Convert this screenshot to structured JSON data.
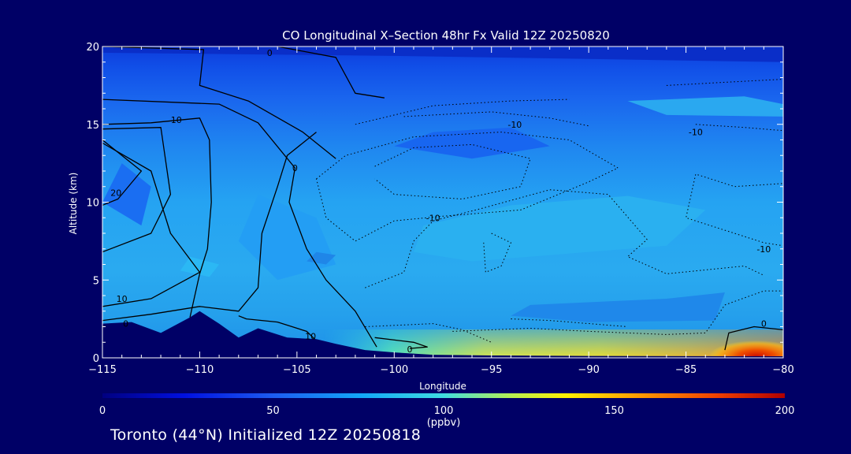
{
  "chart_data": {
    "type": "heatmap",
    "title": "CO Longitudinal X–Section 48hr  Fx Valid 12Z 20250820",
    "xlabel": "Longitude",
    "ylabel": "Altitude (km)",
    "xlim": [
      -115,
      -80
    ],
    "ylim": [
      0,
      20
    ],
    "xticks": [
      -115,
      -110,
      -105,
      -100,
      -95,
      -90,
      -85,
      -80
    ],
    "xtick_labels": [
      "−115",
      "−110",
      "−105",
      "−100",
      "−95",
      "−90",
      "−85",
      "−80"
    ],
    "yticks": [
      0,
      5,
      10,
      15,
      20
    ],
    "ytick_labels": [
      "0",
      "5",
      "10",
      "15",
      "20"
    ],
    "colorbar": {
      "min": 0,
      "max": 200,
      "ticks": [
        0,
        50,
        100,
        150,
        200
      ],
      "tick_labels": [
        "0",
        "50",
        "100",
        "150",
        "200"
      ],
      "unit": "(ppbv)"
    },
    "field_description": "CO mixing ratio (ppbv); ~40-50 in upper troposphere, ~60-80 mid levels, enhanced near surface east of -97 reaching ~200 near -81",
    "contour_labels": [
      {
        "text": "0",
        "lon": -106.4,
        "alt": 19.6
      },
      {
        "text": "10",
        "lon": -111.2,
        "alt": 15.3
      },
      {
        "text": "20",
        "lon": -114.3,
        "alt": 10.6
      },
      {
        "text": "10",
        "lon": -114.0,
        "alt": 3.8
      },
      {
        "text": "0",
        "lon": -113.8,
        "alt": 2.2
      },
      {
        "text": "0",
        "lon": -105.1,
        "alt": 12.2
      },
      {
        "text": "10",
        "lon": -104.3,
        "alt": 1.4
      },
      {
        "text": "0",
        "lon": -99.2,
        "alt": 0.55
      },
      {
        "text": "-10",
        "lon": -98.0,
        "alt": 9.0
      },
      {
        "text": "-10",
        "lon": -93.8,
        "alt": 15.0
      },
      {
        "text": "-10",
        "lon": -84.5,
        "alt": 14.5
      },
      {
        "text": "-10",
        "lon": -81.0,
        "alt": 7.0
      },
      {
        "text": "0",
        "lon": -81.0,
        "alt": 2.2
      }
    ],
    "terrain": [
      [
        -115,
        2.2
      ],
      [
        -113.5,
        2.3
      ],
      [
        -112,
        1.6
      ],
      [
        -110.5,
        2.6
      ],
      [
        -110,
        3.0
      ],
      [
        -109,
        2.2
      ],
      [
        -108,
        1.3
      ],
      [
        -107,
        1.9
      ],
      [
        -106.5,
        1.7
      ],
      [
        -105.5,
        1.3
      ],
      [
        -104,
        1.2
      ],
      [
        -103,
        0.9
      ],
      [
        -101.5,
        0.5
      ],
      [
        -100,
        0.35
      ],
      [
        -98,
        0.2
      ],
      [
        -95,
        0.15
      ],
      [
        -90,
        0.12
      ],
      [
        -80,
        0.1
      ]
    ]
  },
  "footer": "Toronto (44°N) Initialized 12Z 20250818"
}
